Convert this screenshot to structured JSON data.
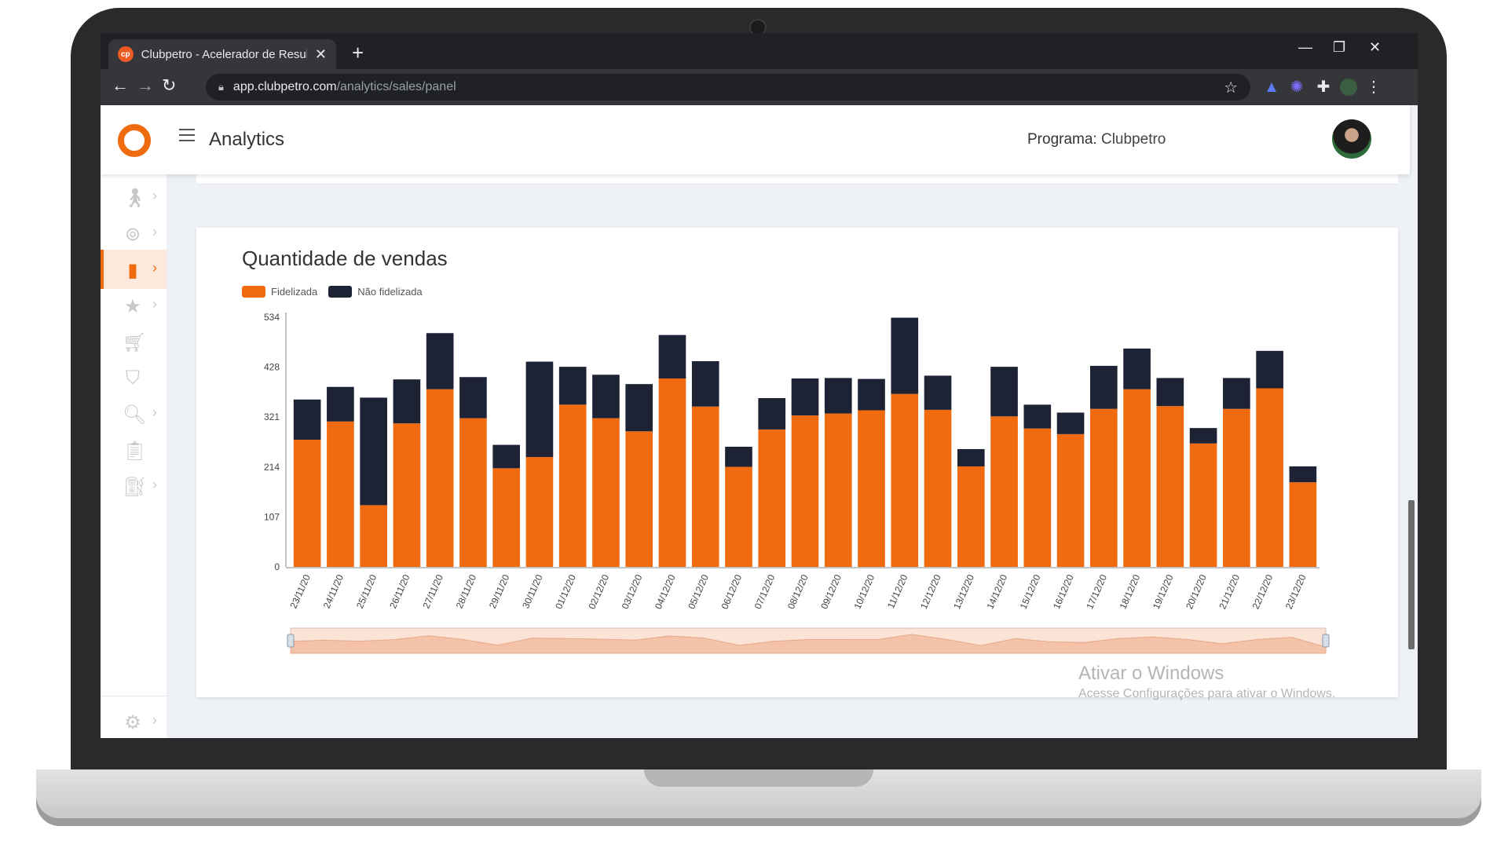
{
  "browser": {
    "tab_title": "Clubpetro - Acelerador de Resultados",
    "favicon_text": "cp",
    "url_host": "app.clubpetro.com",
    "url_path": "/analytics/sales/panel"
  },
  "header": {
    "title": "Analytics",
    "program_label": "Programa:",
    "program_value": "Clubpetro"
  },
  "sidebar": {
    "items": [
      {
        "icon": "person-walking-icon",
        "has_chevron": true,
        "active": false
      },
      {
        "icon": "target-icon",
        "has_chevron": true,
        "active": false
      },
      {
        "icon": "bar-chart-icon",
        "has_chevron": true,
        "active": true
      },
      {
        "icon": "star-icon",
        "has_chevron": true,
        "active": false
      },
      {
        "icon": "cart-add-icon",
        "has_chevron": false,
        "active": false
      },
      {
        "icon": "shield-check-icon",
        "has_chevron": false,
        "active": false
      },
      {
        "icon": "search-doc-icon",
        "has_chevron": true,
        "active": false
      },
      {
        "icon": "clipboard-icon",
        "has_chevron": false,
        "active": false
      },
      {
        "icon": "fuel-pump-icon",
        "has_chevron": true,
        "active": false
      }
    ],
    "settings_icon": "gear-icon"
  },
  "watermark": {
    "title": "Ativar o Windows",
    "subtitle": "Acesse Configurações para ativar o Windows."
  },
  "chart_data": {
    "type": "bar",
    "stacked": true,
    "title": "Quantidade de vendas",
    "ylim": [
      0,
      534
    ],
    "yticks": [
      "0",
      "107",
      "214",
      "321",
      "428",
      "534"
    ],
    "categories": [
      "23/11/20",
      "24/11/20",
      "25/11/20",
      "26/11/20",
      "27/11/20",
      "28/11/20",
      "29/11/20",
      "30/11/20",
      "01/12/20",
      "02/12/20",
      "03/12/20",
      "04/12/20",
      "05/12/20",
      "06/12/20",
      "07/12/20",
      "08/12/20",
      "09/12/20",
      "10/12/20",
      "11/12/20",
      "12/12/20",
      "13/12/20",
      "14/12/20",
      "15/12/20",
      "16/12/20",
      "17/12/20",
      "18/12/20",
      "19/12/20",
      "20/12/20",
      "21/12/20",
      "22/12/20",
      "23/12/20"
    ],
    "series": [
      {
        "name": "Fidelizada",
        "color": "#f06a0f",
        "values": [
          272,
          311,
          132,
          307,
          380,
          318,
          211,
          235,
          347,
          318,
          290,
          403,
          343,
          214,
          294,
          324,
          328,
          335,
          370,
          336,
          215,
          322,
          296,
          284,
          338,
          380,
          344,
          264,
          338,
          382,
          181
        ]
      },
      {
        "name": "Não fidelizada",
        "color": "#1e2235",
        "values": [
          86,
          74,
          230,
          94,
          120,
          88,
          50,
          204,
          81,
          93,
          101,
          93,
          97,
          43,
          67,
          79,
          76,
          67,
          163,
          73,
          37,
          106,
          51,
          46,
          92,
          87,
          60,
          33,
          66,
          80,
          34
        ]
      }
    ],
    "grid": false,
    "legend": "top-left",
    "range_slider": true
  }
}
